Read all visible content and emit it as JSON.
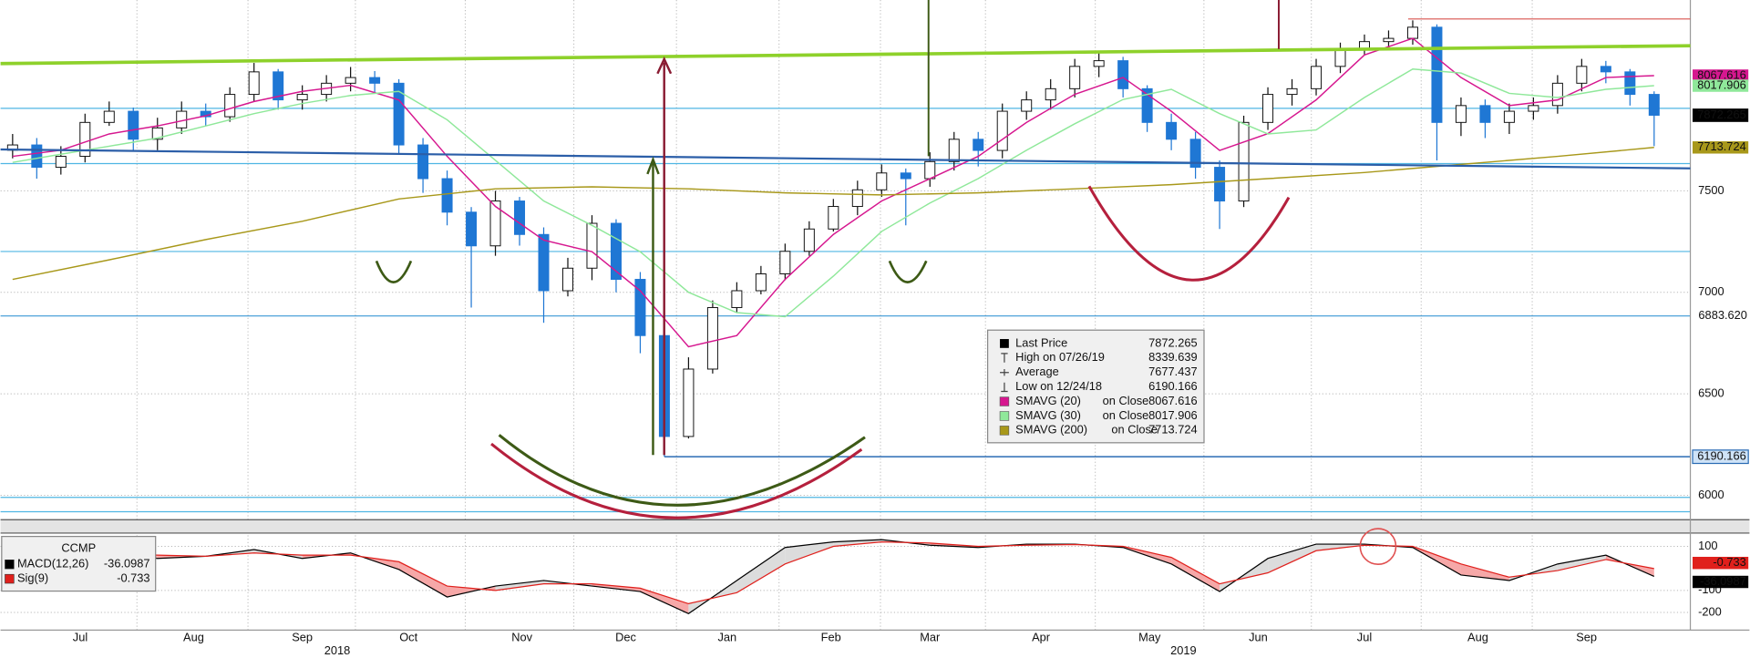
{
  "chart_data": {
    "type": "candlestick",
    "xlim": [
      -0.5,
      69.5
    ],
    "xticks": [
      {
        "value": 2.8,
        "label": "Jul"
      },
      {
        "value": 7.5,
        "label": "Aug"
      },
      {
        "value": 12,
        "label": "Sep"
      },
      {
        "value": 16.4,
        "label": "Oct"
      },
      {
        "value": 21.1,
        "label": "Nov"
      },
      {
        "value": 25.4,
        "label": "Dec"
      },
      {
        "value": 29.6,
        "label": "Jan"
      },
      {
        "value": 33.9,
        "label": "Feb"
      },
      {
        "value": 38,
        "label": "Mar"
      },
      {
        "value": 42.6,
        "label": "Apr"
      },
      {
        "value": 47.1,
        "label": "May"
      },
      {
        "value": 51.6,
        "label": "Jun"
      },
      {
        "value": 56,
        "label": "Jul"
      },
      {
        "value": 60.7,
        "label": "Aug"
      },
      {
        "value": 65.2,
        "label": "Sep"
      }
    ],
    "year_ticks": [
      {
        "value": 13.45,
        "label": "2018"
      },
      {
        "value": 48.5,
        "label": "2019"
      }
    ],
    "ylim": [
      5880,
      8440
    ],
    "yticks": [
      6000,
      6500,
      7000,
      7500
    ],
    "grid": true,
    "price": {
      "up_color": "#ffffff",
      "down_color": "#1f77d4",
      "open": [
        7700,
        7726,
        7616,
        7670,
        7837,
        7892,
        7754,
        7810,
        7892,
        7865,
        7975,
        8086,
        7948,
        7975,
        8030,
        8058,
        8030,
        7726,
        7560,
        7395,
        7229,
        7450,
        7285,
        7008,
        7119,
        7340,
        7064,
        6787,
        6290,
        6622,
        6925,
        7008,
        7091,
        7202,
        7312,
        7423,
        7505,
        7588,
        7560,
        7644,
        7754,
        7699,
        7892,
        7948,
        8003,
        8113,
        8141,
        8003,
        7837,
        7754,
        7616,
        7450,
        7837,
        7975,
        8003,
        8113,
        8196,
        8235,
        8251,
        8306,
        7837,
        7920,
        7837,
        7892,
        7920,
        8030,
        8113,
        8086,
        7975
      ],
      "high": [
        7780,
        7760,
        7720,
        7880,
        7940,
        7910,
        7860,
        7940,
        7930,
        8010,
        8130,
        8100,
        8020,
        8070,
        8110,
        8090,
        8050,
        7760,
        7600,
        7420,
        7500,
        7470,
        7320,
        7170,
        7380,
        7360,
        7100,
        6830,
        6680,
        6960,
        7050,
        7130,
        7240,
        7350,
        7460,
        7550,
        7630,
        7610,
        7690,
        7790,
        7790,
        7930,
        7990,
        8050,
        8150,
        8180,
        8160,
        8020,
        7880,
        7790,
        7650,
        7870,
        8010,
        8050,
        8150,
        8230,
        8270,
        8290,
        8339.639,
        8320,
        7960,
        7950,
        7930,
        7960,
        8070,
        8150,
        8140,
        8100,
        7990
      ],
      "low": [
        7660,
        7560,
        7580,
        7640,
        7820,
        7700,
        7700,
        7780,
        7820,
        7840,
        7940,
        7900,
        7900,
        7940,
        7990,
        7980,
        7680,
        7490,
        7330,
        6925,
        7180,
        7230,
        6850,
        6980,
        7060,
        7000,
        6700,
        6190.166,
        6280,
        6600,
        6900,
        6990,
        7060,
        7180,
        7300,
        7380,
        7470,
        7330,
        7520,
        7600,
        7620,
        7660,
        7850,
        7900,
        7960,
        8060,
        7960,
        7790,
        7700,
        7560,
        7312,
        7420,
        7800,
        7920,
        7970,
        8080,
        8170,
        8200,
        8220,
        7650,
        7770,
        7760,
        7780,
        7850,
        7880,
        7990,
        8030,
        7920,
        7720
      ],
      "close": [
        7726,
        7616,
        7670,
        7837,
        7892,
        7754,
        7810,
        7892,
        7865,
        7975,
        8086,
        7948,
        7975,
        8030,
        8058,
        8030,
        7726,
        7560,
        7395,
        7229,
        7450,
        7285,
        7008,
        7119,
        7340,
        7064,
        6787,
        6290,
        6622,
        6925,
        7008,
        7091,
        7202,
        7312,
        7423,
        7505,
        7588,
        7560,
        7644,
        7754,
        7699,
        7892,
        7948,
        8003,
        8113,
        8141,
        8003,
        7837,
        7754,
        7616,
        7450,
        7837,
        7975,
        8003,
        8113,
        8196,
        8235,
        8251,
        8306,
        7837,
        7920,
        7837,
        7892,
        7920,
        8030,
        8113,
        8086,
        7975,
        7872.265
      ]
    },
    "overlays": [
      {
        "name": "SMAVG (20)",
        "basis": "on Close",
        "color": "#d6178f",
        "x": [
          0,
          2,
          4,
          6,
          8,
          10,
          12,
          14,
          16,
          18,
          20,
          22,
          24,
          26,
          28,
          30,
          32,
          34,
          36,
          38,
          40,
          42,
          44,
          46,
          48,
          50,
          52,
          54,
          56,
          58,
          60,
          62,
          64,
          66,
          68
        ],
        "values": [
          7670,
          7700,
          7780,
          7820,
          7870,
          7940,
          7990,
          8020,
          7948,
          7670,
          7423,
          7257,
          7200,
          7008,
          6732,
          6787,
          7064,
          7285,
          7450,
          7560,
          7670,
          7837,
          7975,
          8058,
          7892,
          7699,
          7782,
          7948,
          8169,
          8251,
          8058,
          7920,
          7948,
          8058,
          8067.616
        ]
      },
      {
        "name": "SMAVG (30)",
        "basis": "on Close",
        "color": "#8fe89a",
        "x": [
          0,
          2,
          4,
          6,
          8,
          10,
          12,
          14,
          16,
          18,
          20,
          22,
          24,
          26,
          28,
          30,
          32,
          34,
          36,
          38,
          40,
          42,
          44,
          46,
          48,
          50,
          52,
          54,
          56,
          58,
          60,
          62,
          64,
          66,
          68
        ],
        "values": [
          7640,
          7680,
          7720,
          7760,
          7820,
          7880,
          7930,
          7970,
          7990,
          7850,
          7650,
          7450,
          7330,
          7200,
          7000,
          6900,
          6880,
          7080,
          7300,
          7440,
          7560,
          7700,
          7830,
          7950,
          8000,
          7880,
          7780,
          7800,
          7960,
          8100,
          8080,
          7980,
          7960,
          8000,
          8017.906
        ]
      },
      {
        "name": "SMAVG (200)",
        "basis": "on Close",
        "color": "#a8981a",
        "x": [
          0,
          4,
          8,
          12,
          16,
          20,
          24,
          28,
          32,
          36,
          40,
          44,
          48,
          52,
          56,
          60,
          64,
          68
        ],
        "values": [
          7064,
          7160,
          7260,
          7350,
          7460,
          7510,
          7520,
          7510,
          7490,
          7480,
          7490,
          7510,
          7530,
          7560,
          7590,
          7630,
          7670,
          7713.724
        ]
      }
    ],
    "legend": {
      "last": "Last Price",
      "high": "High on 07/26/19",
      "average": "Average",
      "low": "Low on 12/24/18"
    },
    "average": 7677.437,
    "levels": [
      {
        "value": 7906.294,
        "color": "#4fb6e3"
      },
      {
        "value": 7634.119,
        "color": "#4fb6e3"
      },
      {
        "value": 7201.307,
        "color": "#4fb6e3"
      },
      {
        "value": 6883.62,
        "label": "6883.620",
        "color": "#3a98d6"
      },
      {
        "value": 5989.916,
        "color": "#4fb6e3"
      },
      {
        "value": 5919.227,
        "color": "#4fb6e3"
      }
    ],
    "macd": {
      "title": "CCMP",
      "ylim": [
        -280,
        160
      ],
      "yticks": [
        100,
        -100,
        -200
      ],
      "x": [
        0,
        2,
        4,
        6,
        8,
        10,
        12,
        14,
        16,
        18,
        20,
        22,
        24,
        26,
        28,
        30,
        32,
        34,
        36,
        38,
        40,
        42,
        44,
        46,
        48,
        50,
        52,
        54,
        56,
        58,
        60,
        62,
        64,
        66,
        68
      ],
      "series": [
        {
          "name": "MACD(12,26)",
          "color": "#000000",
          "values": [
            45,
            70,
            70,
            45,
            55,
            85,
            45,
            70,
            -5,
            -130,
            -80,
            -55,
            -80,
            -105,
            -205,
            -55,
            95,
            120,
            130,
            105,
            95,
            110,
            110,
            95,
            20,
            -105,
            45,
            110,
            110,
            95,
            -30,
            -55,
            20,
            60,
            -36.0987
          ]
        },
        {
          "name": "Sig(9)",
          "color": "#e0201c",
          "values": [
            50,
            60,
            68,
            60,
            55,
            70,
            60,
            60,
            30,
            -80,
            -100,
            -70,
            -70,
            -90,
            -160,
            -110,
            20,
            100,
            120,
            115,
            100,
            105,
            108,
            100,
            50,
            -70,
            -20,
            80,
            105,
            100,
            20,
            -40,
            -10,
            40,
            -0.733
          ]
        }
      ]
    }
  }
}
